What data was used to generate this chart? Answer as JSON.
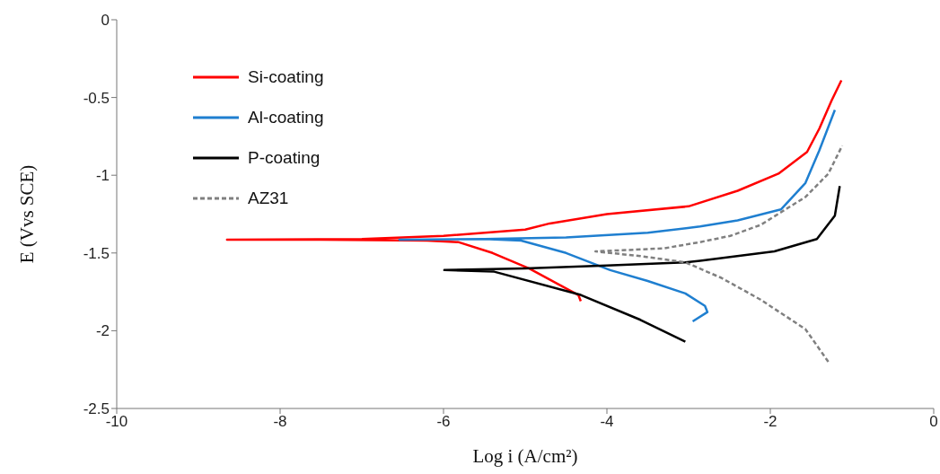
{
  "chart_data": {
    "type": "line",
    "xlabel": "Log i (A/cm²)",
    "ylabel": "E (Vvs SCE)",
    "xlim": [
      -10,
      0
    ],
    "xticks": [
      -10,
      -8,
      -6,
      -4,
      -2,
      0
    ],
    "ylim": [
      -2.5,
      0
    ],
    "yticks": [
      -2.5,
      -2,
      -1.5,
      -1,
      -0.5,
      0
    ],
    "grid": false,
    "legend": "top left",
    "marker": "none",
    "series": [
      {
        "name": "Si-coating",
        "color": "#ff0000",
        "line_style": "solid",
        "x": [
          -4.32,
          -4.35,
          -4.6,
          -4.95,
          -5.4,
          -5.82,
          -6.2,
          -7.5,
          -8.65,
          -7.0,
          -6.0,
          -5.0,
          -4.7,
          -4.0,
          -3.0,
          -2.4,
          -1.9,
          -1.55,
          -1.4,
          -1.25,
          -1.13
        ],
        "values": [
          -1.81,
          -1.77,
          -1.7,
          -1.6,
          -1.5,
          -1.43,
          -1.42,
          -1.415,
          -1.415,
          -1.41,
          -1.39,
          -1.35,
          -1.31,
          -1.25,
          -1.2,
          -1.1,
          -0.99,
          -0.85,
          -0.7,
          -0.52,
          -0.39
        ]
      },
      {
        "name": "Al-coating",
        "color": "#1f7fd0",
        "line_style": "solid",
        "x": [
          -2.95,
          -2.77,
          -2.8,
          -3.04,
          -3.5,
          -3.96,
          -4.5,
          -5.05,
          -5.5,
          -6.54,
          -5.5,
          -4.5,
          -3.5,
          -2.86,
          -2.4,
          -1.87,
          -1.57,
          -1.4,
          -1.21
        ],
        "values": [
          -1.94,
          -1.88,
          -1.84,
          -1.76,
          -1.68,
          -1.61,
          -1.5,
          -1.42,
          -1.41,
          -1.415,
          -1.41,
          -1.4,
          -1.37,
          -1.33,
          -1.29,
          -1.22,
          -1.05,
          -0.84,
          -0.58
        ]
      },
      {
        "name": "P-coating",
        "color": "#000000",
        "line_style": "solid",
        "x": [
          -3.04,
          -3.59,
          -4.32,
          -5.38,
          -5.99,
          -5.0,
          -4.0,
          -3.04,
          -2.86,
          -1.95,
          -1.43,
          -1.21,
          -1.15
        ],
        "values": [
          -2.07,
          -1.93,
          -1.77,
          -1.62,
          -1.61,
          -1.6,
          -1.58,
          -1.56,
          -1.55,
          -1.49,
          -1.41,
          -1.26,
          -1.07
        ]
      },
      {
        "name": "AZ31",
        "color": "#808080",
        "line_style": "dashed",
        "x": [
          -1.29,
          -1.57,
          -2.12,
          -2.6,
          -3.04,
          -3.59,
          -4.14,
          -3.3,
          -2.86,
          -2.49,
          -2.12,
          -1.57,
          -1.29,
          -1.12
        ],
        "values": [
          -2.2,
          -1.99,
          -1.8,
          -1.66,
          -1.56,
          -1.52,
          -1.49,
          -1.47,
          -1.43,
          -1.39,
          -1.32,
          -1.14,
          -0.99,
          -0.81
        ]
      }
    ]
  }
}
